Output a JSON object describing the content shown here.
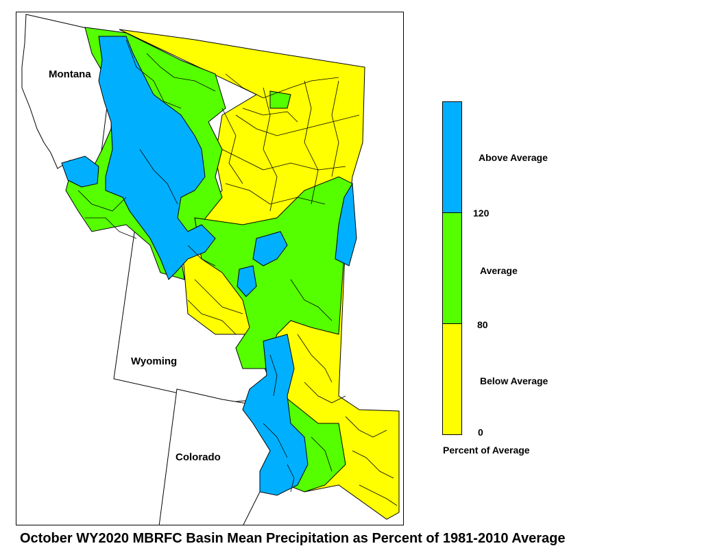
{
  "caption": "October WY2020 MBRFC Basin Mean Precipitation as Percent of 1981-2010 Average",
  "states": {
    "montana": "Montana",
    "wyoming": "Wyoming",
    "colorado": "Colorado"
  },
  "legend": {
    "axis_title": "Percent of Average",
    "categories": [
      {
        "label": "Above Average",
        "color": "#00b0ff"
      },
      {
        "label": "Average",
        "color": "#55ff00"
      },
      {
        "label": "Below Average",
        "color": "#ffff00"
      }
    ],
    "ticks": [
      "120",
      "80",
      "0"
    ]
  },
  "colors": {
    "above": "#00b0ff",
    "average": "#55ff00",
    "below": "#ffff00",
    "outline": "#000000",
    "background": "#ffffff"
  }
}
